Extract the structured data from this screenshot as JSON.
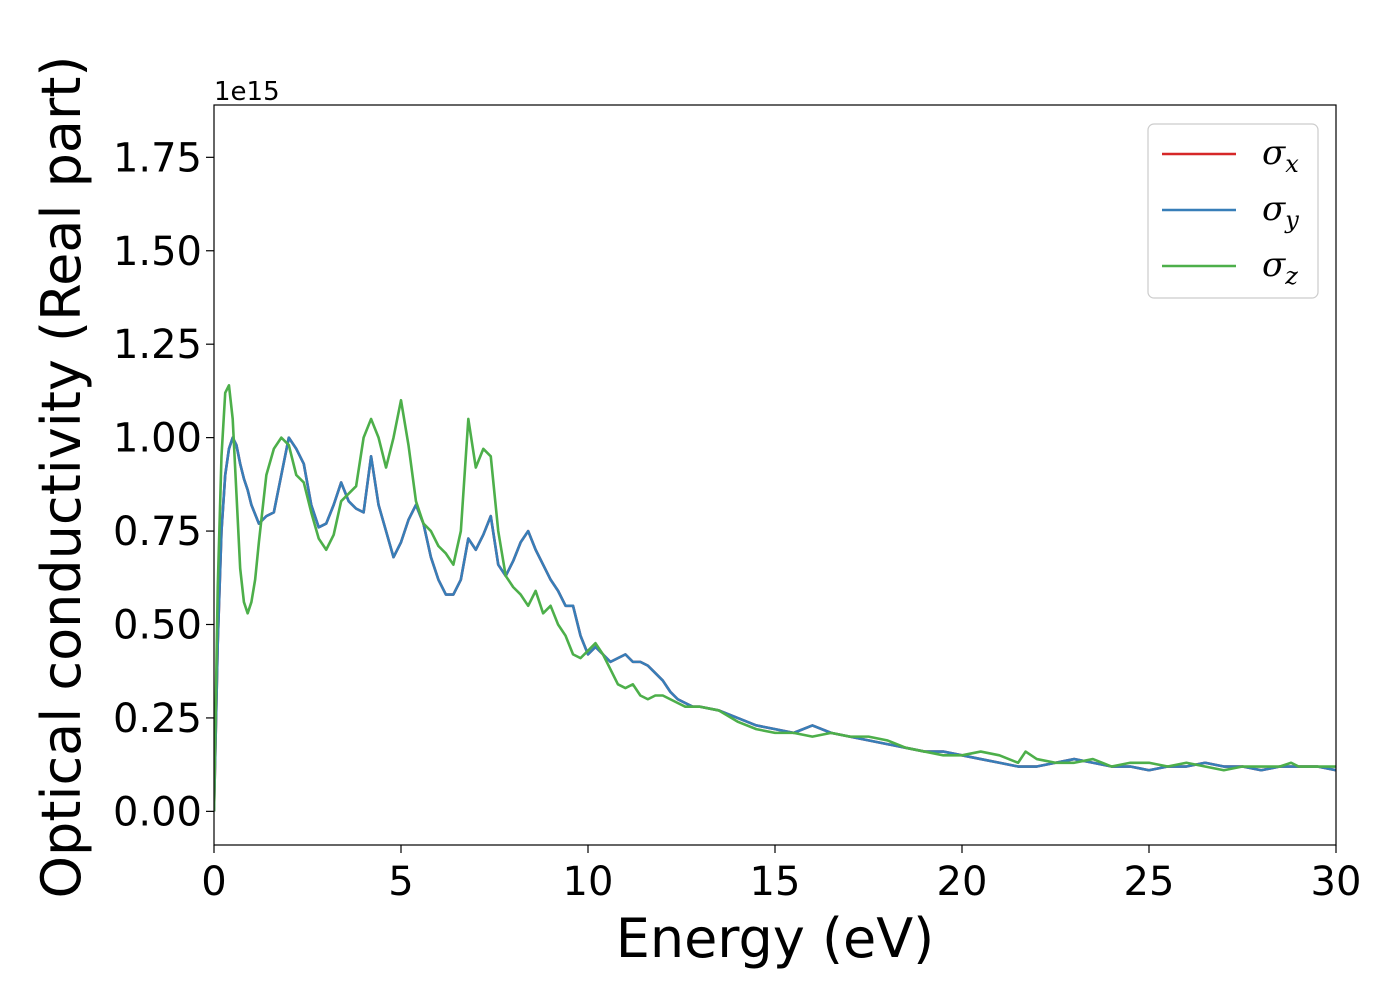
{
  "chart_data": {
    "type": "line",
    "xlabel": "Energy (eV)",
    "ylabel": "Optical conductivity (Real part)",
    "y_offset_label": "1e15",
    "xlim": [
      0,
      30
    ],
    "ylim": [
      -0.09,
      1.89
    ],
    "x_ticks": [
      0,
      5,
      10,
      15,
      20,
      25,
      30
    ],
    "x_tick_labels": [
      "0",
      "5",
      "10",
      "15",
      "20",
      "25",
      "30"
    ],
    "y_ticks": [
      0.0,
      0.25,
      0.5,
      0.75,
      1.0,
      1.25,
      1.5,
      1.75
    ],
    "y_tick_labels": [
      "0.00",
      "0.25",
      "0.50",
      "0.75",
      "1.00",
      "1.25",
      "1.50",
      "1.75"
    ],
    "grid": false,
    "legend_position": "top-right",
    "series": [
      {
        "name": "σx",
        "legend_symbol": "σ",
        "legend_subscript": "x",
        "color": "#d62728",
        "x": [
          0,
          0.1,
          0.2,
          0.3,
          0.4,
          0.5,
          0.6,
          0.7,
          0.8,
          0.9,
          1.0,
          1.2,
          1.4,
          1.6,
          1.8,
          2.0,
          2.2,
          2.4,
          2.6,
          2.8,
          3.0,
          3.2,
          3.4,
          3.6,
          3.8,
          4.0,
          4.2,
          4.4,
          4.6,
          4.8,
          5.0,
          5.2,
          5.4,
          5.6,
          5.8,
          6.0,
          6.2,
          6.4,
          6.6,
          6.8,
          7.0,
          7.2,
          7.4,
          7.6,
          7.8,
          8.0,
          8.2,
          8.4,
          8.6,
          8.8,
          9.0,
          9.2,
          9.4,
          9.6,
          9.8,
          10.0,
          10.2,
          10.4,
          10.6,
          10.8,
          11.0,
          11.2,
          11.4,
          11.6,
          11.8,
          12.0,
          12.2,
          12.4,
          12.6,
          12.8,
          13.0,
          13.5,
          14.0,
          14.5,
          15.0,
          15.5,
          16.0,
          16.5,
          17.0,
          17.5,
          18.0,
          18.5,
          19.0,
          19.5,
          20.0,
          20.5,
          21.0,
          21.5,
          22.0,
          22.5,
          23.0,
          23.5,
          24.0,
          24.5,
          25.0,
          25.5,
          26.0,
          26.5,
          27.0,
          27.5,
          28.0,
          28.5,
          29.0,
          29.5,
          30.0
        ],
        "values": [
          0.0,
          0.45,
          0.75,
          0.9,
          0.97,
          1.0,
          0.98,
          0.93,
          0.89,
          0.86,
          0.82,
          0.77,
          0.79,
          0.8,
          0.9,
          1.0,
          0.97,
          0.93,
          0.82,
          0.76,
          0.77,
          0.82,
          0.88,
          0.83,
          0.81,
          0.8,
          0.95,
          0.82,
          0.75,
          0.68,
          0.72,
          0.78,
          0.82,
          0.77,
          0.68,
          0.62,
          0.58,
          0.58,
          0.62,
          0.73,
          0.7,
          0.74,
          0.79,
          0.66,
          0.63,
          0.67,
          0.72,
          0.75,
          0.7,
          0.66,
          0.62,
          0.59,
          0.55,
          0.55,
          0.47,
          0.42,
          0.44,
          0.42,
          0.4,
          0.41,
          0.42,
          0.4,
          0.4,
          0.39,
          0.37,
          0.35,
          0.32,
          0.3,
          0.29,
          0.28,
          0.28,
          0.27,
          0.25,
          0.23,
          0.22,
          0.21,
          0.23,
          0.21,
          0.2,
          0.19,
          0.18,
          0.17,
          0.16,
          0.16,
          0.15,
          0.14,
          0.13,
          0.12,
          0.12,
          0.13,
          0.14,
          0.13,
          0.12,
          0.12,
          0.11,
          0.12,
          0.12,
          0.13,
          0.12,
          0.12,
          0.11,
          0.12,
          0.12,
          0.12,
          0.11
        ]
      },
      {
        "name": "σy",
        "legend_symbol": "σ",
        "legend_subscript": "y",
        "color": "#377eb8",
        "x": [
          0,
          0.1,
          0.2,
          0.3,
          0.4,
          0.5,
          0.6,
          0.7,
          0.8,
          0.9,
          1.0,
          1.2,
          1.4,
          1.6,
          1.8,
          2.0,
          2.2,
          2.4,
          2.6,
          2.8,
          3.0,
          3.2,
          3.4,
          3.6,
          3.8,
          4.0,
          4.2,
          4.4,
          4.6,
          4.8,
          5.0,
          5.2,
          5.4,
          5.6,
          5.8,
          6.0,
          6.2,
          6.4,
          6.6,
          6.8,
          7.0,
          7.2,
          7.4,
          7.6,
          7.8,
          8.0,
          8.2,
          8.4,
          8.6,
          8.8,
          9.0,
          9.2,
          9.4,
          9.6,
          9.8,
          10.0,
          10.2,
          10.4,
          10.6,
          10.8,
          11.0,
          11.2,
          11.4,
          11.6,
          11.8,
          12.0,
          12.2,
          12.4,
          12.6,
          12.8,
          13.0,
          13.5,
          14.0,
          14.5,
          15.0,
          15.5,
          16.0,
          16.5,
          17.0,
          17.5,
          18.0,
          18.5,
          19.0,
          19.5,
          20.0,
          20.5,
          21.0,
          21.5,
          22.0,
          22.5,
          23.0,
          23.5,
          24.0,
          24.5,
          25.0,
          25.5,
          26.0,
          26.5,
          27.0,
          27.5,
          28.0,
          28.5,
          29.0,
          29.5,
          30.0
        ],
        "values": [
          0.0,
          0.45,
          0.75,
          0.9,
          0.97,
          1.0,
          0.98,
          0.93,
          0.89,
          0.86,
          0.82,
          0.77,
          0.79,
          0.8,
          0.9,
          1.0,
          0.97,
          0.93,
          0.82,
          0.76,
          0.77,
          0.82,
          0.88,
          0.83,
          0.81,
          0.8,
          0.95,
          0.82,
          0.75,
          0.68,
          0.72,
          0.78,
          0.82,
          0.77,
          0.68,
          0.62,
          0.58,
          0.58,
          0.62,
          0.73,
          0.7,
          0.74,
          0.79,
          0.66,
          0.63,
          0.67,
          0.72,
          0.75,
          0.7,
          0.66,
          0.62,
          0.59,
          0.55,
          0.55,
          0.47,
          0.42,
          0.44,
          0.42,
          0.4,
          0.41,
          0.42,
          0.4,
          0.4,
          0.39,
          0.37,
          0.35,
          0.32,
          0.3,
          0.29,
          0.28,
          0.28,
          0.27,
          0.25,
          0.23,
          0.22,
          0.21,
          0.23,
          0.21,
          0.2,
          0.19,
          0.18,
          0.17,
          0.16,
          0.16,
          0.15,
          0.14,
          0.13,
          0.12,
          0.12,
          0.13,
          0.14,
          0.13,
          0.12,
          0.12,
          0.11,
          0.12,
          0.12,
          0.13,
          0.12,
          0.12,
          0.11,
          0.12,
          0.12,
          0.12,
          0.11
        ]
      },
      {
        "name": "σz",
        "legend_symbol": "σ",
        "legend_subscript": "z",
        "color": "#4daf4a",
        "x": [
          0,
          0.1,
          0.2,
          0.3,
          0.4,
          0.5,
          0.6,
          0.7,
          0.8,
          0.9,
          1.0,
          1.1,
          1.2,
          1.4,
          1.6,
          1.8,
          2.0,
          2.2,
          2.4,
          2.6,
          2.8,
          3.0,
          3.2,
          3.4,
          3.6,
          3.8,
          4.0,
          4.2,
          4.4,
          4.6,
          4.8,
          5.0,
          5.2,
          5.4,
          5.6,
          5.8,
          6.0,
          6.2,
          6.4,
          6.6,
          6.8,
          7.0,
          7.2,
          7.4,
          7.6,
          7.8,
          8.0,
          8.2,
          8.4,
          8.6,
          8.8,
          9.0,
          9.2,
          9.4,
          9.6,
          9.8,
          10.0,
          10.2,
          10.4,
          10.6,
          10.8,
          11.0,
          11.2,
          11.4,
          11.6,
          11.8,
          12.0,
          12.2,
          12.4,
          12.6,
          12.8,
          13.0,
          13.5,
          14.0,
          14.5,
          15.0,
          15.5,
          16.0,
          16.5,
          17.0,
          17.5,
          18.0,
          18.5,
          19.0,
          19.5,
          20.0,
          20.5,
          21.0,
          21.5,
          21.7,
          22.0,
          22.5,
          23.0,
          23.5,
          24.0,
          24.5,
          25.0,
          25.5,
          26.0,
          26.5,
          27.0,
          27.5,
          28.0,
          28.5,
          28.8,
          29.0,
          29.5,
          30.0
        ],
        "values": [
          0.0,
          0.6,
          0.95,
          1.12,
          1.14,
          1.05,
          0.85,
          0.65,
          0.56,
          0.53,
          0.56,
          0.62,
          0.72,
          0.9,
          0.97,
          1.0,
          0.98,
          0.9,
          0.88,
          0.8,
          0.73,
          0.7,
          0.74,
          0.83,
          0.85,
          0.87,
          1.0,
          1.05,
          1.0,
          0.92,
          1.0,
          1.1,
          0.98,
          0.83,
          0.77,
          0.75,
          0.71,
          0.69,
          0.66,
          0.75,
          1.05,
          0.92,
          0.97,
          0.95,
          0.75,
          0.63,
          0.6,
          0.58,
          0.55,
          0.59,
          0.53,
          0.55,
          0.5,
          0.47,
          0.42,
          0.41,
          0.43,
          0.45,
          0.42,
          0.38,
          0.34,
          0.33,
          0.34,
          0.31,
          0.3,
          0.31,
          0.31,
          0.3,
          0.29,
          0.28,
          0.28,
          0.28,
          0.27,
          0.24,
          0.22,
          0.21,
          0.21,
          0.2,
          0.21,
          0.2,
          0.2,
          0.19,
          0.17,
          0.16,
          0.15,
          0.15,
          0.16,
          0.15,
          0.13,
          0.16,
          0.14,
          0.13,
          0.13,
          0.14,
          0.12,
          0.13,
          0.13,
          0.12,
          0.13,
          0.12,
          0.11,
          0.12,
          0.12,
          0.12,
          0.13,
          0.12,
          0.12,
          0.12
        ]
      }
    ]
  }
}
